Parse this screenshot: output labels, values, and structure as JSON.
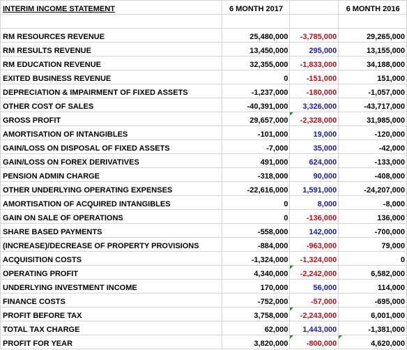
{
  "header": {
    "title": "INTERIM INCOME STATEMENT",
    "col_2017": "6 MONTH 2017",
    "col_change": "",
    "col_2016": "6 MONTH 2016"
  },
  "colors": {
    "negative_change": "#b3121b",
    "positive_change": "#1c1c9c",
    "marker": "#2e8b3e"
  },
  "rows": [
    {
      "label": "RM RESOURCES REVENUE",
      "v2017": "25,480,000",
      "change": "-3,785,000",
      "sign": "neg",
      "v2016": "29,265,000"
    },
    {
      "label": "RM RESULTS REVENUE",
      "v2017": "13,450,000",
      "change": "295,000",
      "sign": "pos",
      "v2016": "13,155,000"
    },
    {
      "label": "RM EDUCATION REVENUE",
      "v2017": "32,355,000",
      "change": "-1,833,000",
      "sign": "neg",
      "v2016": "34,188,000"
    },
    {
      "label": "EXITED BUSINESS REVENUE",
      "v2017": "0",
      "change": "-151,000",
      "sign": "neg",
      "v2016": "151,000"
    },
    {
      "label": "DEPRECIATION & IMPAIRMENT OF FIXED ASSETS",
      "v2017": "-1,237,000",
      "change": "-180,000",
      "sign": "neg",
      "v2016": "-1,057,000"
    },
    {
      "label": "OTHER COST OF SALES",
      "v2017": "-40,391,000",
      "change": "3,326,000",
      "sign": "pos",
      "v2016": "-43,717,000"
    },
    {
      "label": "GROSS PROFIT",
      "v2017": "29,657,000",
      "change": "-2,328,000",
      "sign": "neg",
      "v2016": "31,985,000",
      "marker": true
    },
    {
      "label": "AMORTISATION OF INTANGIBLES",
      "v2017": "-101,000",
      "change": "19,000",
      "sign": "pos",
      "v2016": "-120,000"
    },
    {
      "label": "GAIN/LOSS ON DISPOSAL OF FIXED ASSETS",
      "v2017": "-7,000",
      "change": "35,000",
      "sign": "pos",
      "v2016": "-42,000"
    },
    {
      "label": "GAIN/LOSS ON FOREX DERIVATIVES",
      "v2017": "491,000",
      "change": "624,000",
      "sign": "pos",
      "v2016": "-133,000"
    },
    {
      "label": "PENSION ADMIN CHARGE",
      "v2017": "-318,000",
      "change": "90,000",
      "sign": "pos",
      "v2016": "-408,000"
    },
    {
      "label": "OTHER UNDERLYING OPERATING EXPENSES",
      "v2017": "-22,616,000",
      "change": "1,591,000",
      "sign": "pos",
      "v2016": "-24,207,000"
    },
    {
      "label": "AMORTISATION OF ACQUIRED INTANGIBLES",
      "v2017": "0",
      "change": "8,000",
      "sign": "pos",
      "v2016": "-8,000"
    },
    {
      "label": "GAIN ON SALE OF OPERATIONS",
      "v2017": "0",
      "change": "-136,000",
      "sign": "neg",
      "v2016": "136,000"
    },
    {
      "label": "SHARE BASED PAYMENTS",
      "v2017": "-558,000",
      "change": "142,000",
      "sign": "pos",
      "v2016": "-700,000"
    },
    {
      "label": "(INCREASE)/DECREASE OF PROPERTY PROVISIONS",
      "v2017": "-884,000",
      "change": "-963,000",
      "sign": "neg",
      "v2016": "79,000"
    },
    {
      "label": "ACQUISITION COSTS",
      "v2017": "-1,324,000",
      "change": "-1,324,000",
      "sign": "neg",
      "v2016": "0"
    },
    {
      "label": "OPERATING PROFIT",
      "v2017": "4,340,000",
      "change": "-2,242,000",
      "sign": "neg",
      "v2016": "6,582,000",
      "marker": true
    },
    {
      "label": "UNDERLYING INVESTMENT INCOME",
      "v2017": "170,000",
      "change": "56,000",
      "sign": "pos",
      "v2016": "114,000"
    },
    {
      "label": "FINANCE COSTS",
      "v2017": "-752,000",
      "change": "-57,000",
      "sign": "neg",
      "v2016": "-695,000"
    },
    {
      "label": "PROFIT BEFORE TAX",
      "v2017": "3,758,000",
      "change": "-2,243,000",
      "sign": "neg",
      "v2016": "6,001,000",
      "marker": true
    },
    {
      "label": "TOTAL TAX CHARGE",
      "v2017": "62,000",
      "change": "1,443,000",
      "sign": "pos",
      "v2016": "-1,381,000"
    },
    {
      "label": "PROFIT FOR YEAR",
      "v2017": "3,820,000",
      "change": "-800,000",
      "sign": "neg",
      "v2016": "4,620,000",
      "marker": true,
      "marker_2016": true
    }
  ]
}
